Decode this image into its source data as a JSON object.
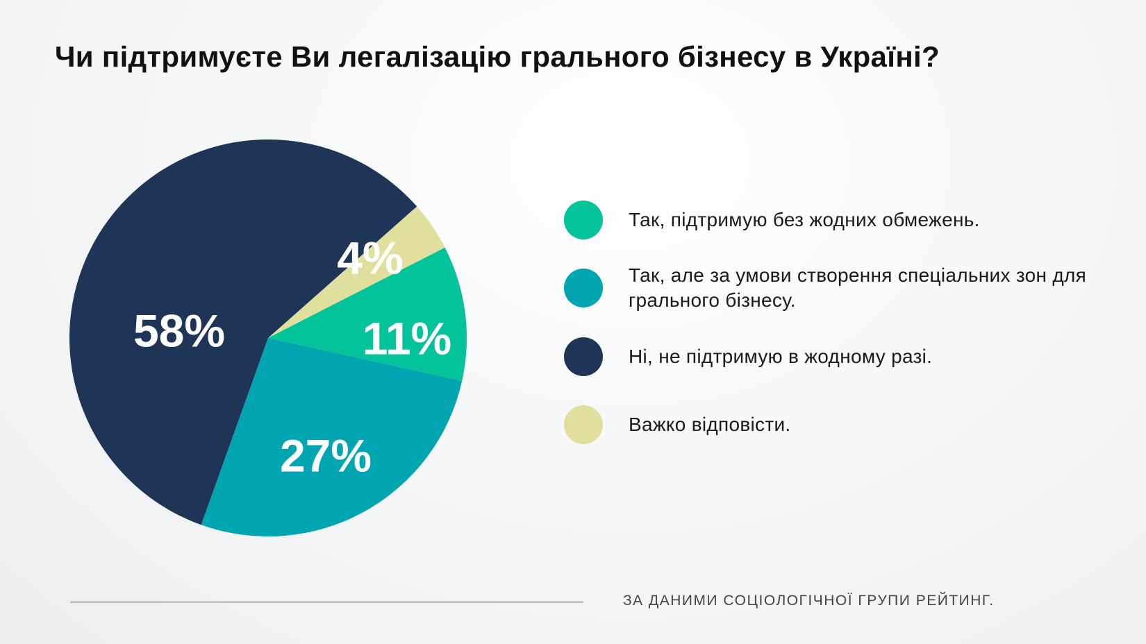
{
  "chart_data": {
    "type": "pie",
    "title": "Чи підтримуєте Ви легалізацію грального бізнесу в Україні?",
    "slices": [
      {
        "label": "Так, підтримую без жодних обмежень.",
        "value": 11,
        "value_label": "11%",
        "color": "#03c39a"
      },
      {
        "label": "Так, але за умови створення спеціальних зон для грального бізнесу.",
        "value": 27,
        "value_label": "27%",
        "color": "#00a5b2"
      },
      {
        "label": "Ні, не підтримую в жодному разі.",
        "value": 58,
        "value_label": "58%",
        "color": "#1f3557"
      },
      {
        "label": "Важко відповісти.",
        "value": 4,
        "value_label": "4%",
        "color": "#e0df9e"
      }
    ],
    "legend_position": "right",
    "source": "ЗА ДАНИМИ СОЦІОЛОГІЧНОЇ ГРУПИ РЕЙТИНГ."
  }
}
